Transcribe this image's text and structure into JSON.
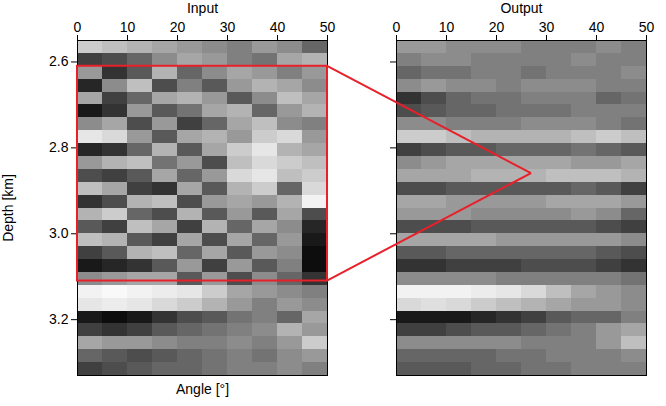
{
  "chart_data": [
    {
      "type": "heatmap",
      "title": "Input",
      "xlabel": "Angle [°]",
      "ylabel": "Depth [km]",
      "xlim": [
        0,
        50
      ],
      "xticks": [
        0,
        10,
        20,
        30,
        40,
        50
      ],
      "ylim": [
        3.33,
        2.55
      ],
      "yticks": [
        2.6,
        2.8,
        {
          "value": 3,
          "label": "3.0"
        },
        3.2
      ],
      "color_range": [
        -1,
        1
      ],
      "annotations": [
        {
          "type": "rect",
          "x": [
            0,
            50
          ],
          "y": [
            2.61,
            3.11
          ],
          "color": "#e8202a"
        }
      ],
      "cells": {
        "x": [
          0,
          5,
          10,
          15,
          20,
          25,
          30,
          35,
          40,
          45,
          50
        ],
        "y": [
          2.55,
          2.58,
          2.61,
          2.64,
          2.67,
          2.7,
          2.73,
          2.76,
          2.79,
          2.82,
          2.85,
          2.88,
          2.91,
          2.94,
          2.97,
          3.0,
          3.03,
          3.06,
          3.09,
          3.12,
          3.15,
          3.18,
          3.21,
          3.24,
          3.27,
          3.3,
          3.33
        ],
        "values": [
          [
            0.6,
            0.5,
            0.4,
            0.3,
            0.2,
            0.1,
            0.0,
            0.2,
            0.1,
            -0.2
          ],
          [
            -0.5,
            -0.4,
            -0.2,
            0.1,
            0.3,
            0.2,
            0.0,
            -0.1,
            0.3,
            0.4
          ],
          [
            0.2,
            -0.6,
            -0.3,
            0.4,
            -0.2,
            0.1,
            0.3,
            0.2,
            0.0,
            0.2
          ],
          [
            -0.7,
            0.1,
            0.5,
            -0.4,
            0.0,
            -0.3,
            0.2,
            0.4,
            0.3,
            0.1
          ],
          [
            0.3,
            -0.5,
            -0.2,
            0.3,
            0.4,
            0.2,
            -0.3,
            0.1,
            0.5,
            0.3
          ],
          [
            -0.8,
            -0.6,
            0.2,
            -0.3,
            -0.1,
            0.3,
            0.4,
            -0.2,
            0.2,
            0.4
          ],
          [
            0.1,
            0.3,
            -0.4,
            0.2,
            -0.5,
            -0.2,
            0.3,
            0.5,
            0.1,
            0.0
          ],
          [
            0.8,
            0.7,
            0.2,
            -0.3,
            0.3,
            0.4,
            0.2,
            0.6,
            0.7,
            0.2
          ],
          [
            -0.7,
            -0.6,
            -0.2,
            0.4,
            -0.3,
            0.3,
            0.6,
            0.8,
            0.4,
            0.3
          ],
          [
            0.2,
            0.4,
            0.5,
            -0.1,
            0.2,
            -0.4,
            0.5,
            0.7,
            0.6,
            0.5
          ],
          [
            -0.4,
            -0.5,
            -0.3,
            0.3,
            -0.2,
            0.2,
            0.7,
            0.8,
            0.5,
            0.6
          ],
          [
            0.5,
            0.3,
            -0.5,
            -0.6,
            0.3,
            -0.3,
            0.4,
            0.6,
            -0.2,
            0.7
          ],
          [
            -0.6,
            -0.4,
            0.4,
            0.5,
            -0.4,
            0.2,
            0.3,
            0.2,
            0.4,
            0.9
          ],
          [
            0.4,
            0.6,
            -0.2,
            -0.4,
            0.4,
            -0.3,
            0.2,
            -0.3,
            0.3,
            -0.4
          ],
          [
            -0.3,
            -0.5,
            0.5,
            0.3,
            -0.5,
            0.4,
            -0.2,
            0.3,
            0.1,
            -0.7
          ],
          [
            0.5,
            0.4,
            -0.3,
            -0.5,
            0.3,
            -0.4,
            0.3,
            -0.2,
            0.2,
            -0.8
          ],
          [
            -0.5,
            -0.3,
            0.4,
            0.5,
            -0.2,
            0.3,
            -0.3,
            0.2,
            0.1,
            -0.9
          ],
          [
            -0.8,
            -0.7,
            -0.6,
            -0.3,
            0.2,
            -0.5,
            0.2,
            -0.3,
            0.0,
            -0.9
          ],
          [
            0.1,
            0.2,
            0.3,
            0.3,
            -0.3,
            0.2,
            -0.4,
            0.1,
            -0.2,
            -0.6
          ],
          [
            0.9,
            0.95,
            0.9,
            0.85,
            0.8,
            0.6,
            0.3,
            0.2,
            0.1,
            0.0
          ],
          [
            0.8,
            0.85,
            0.8,
            0.7,
            0.6,
            0.4,
            0.2,
            0.0,
            0.2,
            0.1
          ],
          [
            -0.8,
            -0.9,
            -0.8,
            -0.6,
            -0.4,
            -0.3,
            -0.1,
            0.0,
            -0.2,
            0.3
          ],
          [
            -0.5,
            -0.6,
            -0.5,
            -0.3,
            -0.2,
            -0.1,
            0.0,
            0.1,
            0.4,
            0.2
          ],
          [
            0.3,
            0.2,
            0.2,
            0.1,
            0.0,
            0.0,
            0.1,
            0.0,
            0.2,
            0.6
          ],
          [
            -0.2,
            -0.3,
            -0.4,
            -0.3,
            -0.2,
            -0.1,
            0.0,
            -0.1,
            0.1,
            0.2
          ],
          [
            -0.5,
            -0.4,
            -0.3,
            -0.2,
            -0.2,
            -0.1,
            0.0,
            0.0,
            0.1,
            0.0
          ]
        ]
      }
    },
    {
      "type": "heatmap",
      "title": "Output",
      "xlim": [
        0,
        50
      ],
      "xticks": [
        0,
        10,
        20,
        30,
        40,
        50
      ],
      "ylim": [
        3.33,
        2.55
      ],
      "yticks": [
        2.6,
        2.8,
        {
          "value": 3,
          "label": "3.0"
        },
        3.2
      ],
      "tick_labels": "x",
      "color_range": [
        -1,
        1
      ],
      "annotations": [
        {
          "type": "pointer",
          "x": 27,
          "y": 2.86,
          "color": "#e8202a"
        }
      ],
      "cells": {
        "x": [
          0,
          5,
          10,
          15,
          20,
          25,
          30,
          35,
          40,
          45,
          50
        ],
        "y": [
          2.55,
          2.58,
          2.61,
          2.64,
          2.67,
          2.7,
          2.73,
          2.76,
          2.79,
          2.82,
          2.85,
          2.88,
          2.91,
          2.94,
          2.97,
          3.0,
          3.03,
          3.06,
          3.09,
          3.12,
          3.15,
          3.18,
          3.21,
          3.24,
          3.27,
          3.3,
          3.33
        ],
        "values": [
          [
            0.2,
            0.2,
            0.1,
            0.1,
            0.1,
            0.0,
            0.0,
            0.0,
            0.1,
            0.0
          ],
          [
            0.0,
            0.1,
            0.1,
            0.0,
            0.0,
            0.0,
            0.0,
            0.1,
            0.0,
            0.0
          ],
          [
            -0.2,
            -0.1,
            -0.1,
            0.0,
            0.0,
            -0.1,
            0.0,
            0.0,
            0.0,
            0.1
          ],
          [
            0.1,
            0.2,
            0.1,
            0.1,
            0.0,
            0.1,
            0.1,
            0.1,
            0.0,
            0.0
          ],
          [
            -0.6,
            -0.4,
            -0.2,
            -0.1,
            -0.1,
            0.0,
            0.0,
            0.0,
            -0.2,
            -0.1
          ],
          [
            -0.4,
            -0.3,
            -0.2,
            -0.2,
            -0.1,
            -0.1,
            -0.1,
            0.0,
            0.0,
            0.0
          ],
          [
            0.1,
            0.1,
            0.0,
            0.0,
            0.0,
            0.1,
            0.1,
            0.1,
            0.0,
            -0.1
          ],
          [
            0.6,
            0.6,
            0.5,
            0.4,
            0.4,
            0.4,
            0.4,
            0.5,
            0.6,
            0.5
          ],
          [
            -0.5,
            -0.4,
            -0.3,
            -0.3,
            -0.2,
            -0.2,
            -0.2,
            -0.1,
            -0.2,
            -0.3
          ],
          [
            0.1,
            0.2,
            0.3,
            0.3,
            0.3,
            0.3,
            0.3,
            0.2,
            0.2,
            0.3
          ],
          [
            0.3,
            0.3,
            0.3,
            0.4,
            0.4,
            0.4,
            0.5,
            0.5,
            0.5,
            0.4
          ],
          [
            -0.4,
            -0.4,
            -0.3,
            -0.3,
            -0.3,
            -0.3,
            -0.3,
            -0.2,
            -0.3,
            -0.5
          ],
          [
            0.3,
            0.3,
            0.2,
            0.2,
            0.2,
            0.2,
            0.3,
            0.3,
            0.3,
            0.2
          ],
          [
            0.2,
            0.2,
            0.2,
            0.1,
            0.1,
            0.1,
            0.1,
            0.2,
            0.1,
            -0.2
          ],
          [
            -0.4,
            -0.4,
            -0.4,
            -0.3,
            -0.3,
            -0.3,
            -0.3,
            -0.3,
            -0.4,
            -0.5
          ],
          [
            0.3,
            0.3,
            0.3,
            0.3,
            0.2,
            0.2,
            0.2,
            0.2,
            0.2,
            0.1
          ],
          [
            -0.3,
            -0.3,
            -0.2,
            -0.2,
            -0.2,
            -0.2,
            -0.2,
            -0.2,
            -0.3,
            -0.4
          ],
          [
            -0.6,
            -0.6,
            -0.5,
            -0.5,
            -0.5,
            -0.4,
            -0.4,
            -0.4,
            -0.5,
            -0.6
          ],
          [
            0.1,
            0.1,
            0.1,
            0.1,
            0.0,
            0.0,
            0.0,
            0.0,
            0.0,
            -0.1
          ],
          [
            0.9,
            0.9,
            0.9,
            0.85,
            0.8,
            0.7,
            0.5,
            0.3,
            0.2,
            0.1
          ],
          [
            0.7,
            0.75,
            0.7,
            0.6,
            0.5,
            0.4,
            0.3,
            0.2,
            0.2,
            0.1
          ],
          [
            -0.8,
            -0.8,
            -0.8,
            -0.7,
            -0.6,
            -0.5,
            -0.3,
            -0.2,
            -0.2,
            0.0
          ],
          [
            -0.5,
            -0.5,
            -0.4,
            -0.3,
            -0.3,
            -0.2,
            -0.1,
            0.0,
            0.2,
            0.3
          ],
          [
            0.1,
            0.1,
            0.1,
            0.1,
            0.1,
            0.0,
            0.0,
            0.0,
            0.2,
            0.5
          ],
          [
            -0.2,
            -0.2,
            -0.2,
            -0.2,
            -0.1,
            -0.1,
            0.0,
            0.0,
            0.0,
            0.1
          ],
          [
            -0.3,
            -0.3,
            -0.3,
            -0.2,
            -0.2,
            -0.1,
            -0.1,
            0.0,
            0.0,
            0.0
          ]
        ]
      }
    }
  ]
}
